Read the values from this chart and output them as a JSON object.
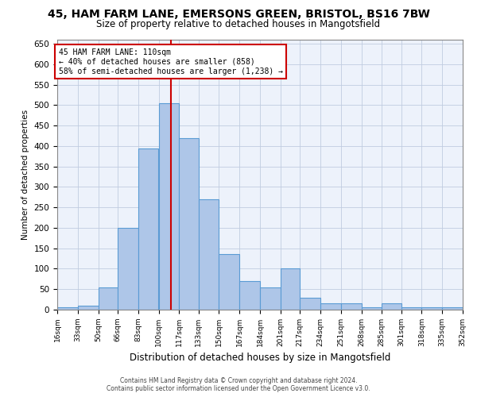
{
  "title1": "45, HAM FARM LANE, EMERSONS GREEN, BRISTOL, BS16 7BW",
  "title2": "Size of property relative to detached houses in Mangotsfield",
  "xlabel": "Distribution of detached houses by size in Mangotsfield",
  "ylabel": "Number of detached properties",
  "footer1": "Contains HM Land Registry data © Crown copyright and database right 2024.",
  "footer2": "Contains public sector information licensed under the Open Government Licence v3.0.",
  "annotation_line1": "45 HAM FARM LANE: 110sqm",
  "annotation_line2": "← 40% of detached houses are smaller (858)",
  "annotation_line3": "58% of semi-detached houses are larger (1,238) →",
  "property_size": 110,
  "bin_labels": [
    "16sqm",
    "33sqm",
    "50sqm",
    "66sqm",
    "83sqm",
    "100sqm",
    "117sqm",
    "133sqm",
    "150sqm",
    "167sqm",
    "184sqm",
    "201sqm",
    "217sqm",
    "234sqm",
    "251sqm",
    "268sqm",
    "285sqm",
    "301sqm",
    "318sqm",
    "335sqm",
    "352sqm"
  ],
  "bin_edges": [
    16,
    33,
    50,
    66,
    83,
    100,
    117,
    133,
    150,
    167,
    184,
    201,
    217,
    234,
    251,
    268,
    285,
    301,
    318,
    335,
    352
  ],
  "bar_heights": [
    5,
    10,
    55,
    200,
    395,
    505,
    420,
    270,
    135,
    70,
    55,
    100,
    30,
    15,
    15,
    5,
    15,
    5,
    5,
    5
  ],
  "bar_color": "#aec6e8",
  "bar_edge_color": "#5a9bd4",
  "vline_x": 110,
  "vline_color": "#cc0000",
  "ylim": [
    0,
    660
  ],
  "yticks": [
    0,
    50,
    100,
    150,
    200,
    250,
    300,
    350,
    400,
    450,
    500,
    550,
    600,
    650
  ],
  "bg_color": "#edf2fb",
  "grid_color": "#c0cce0",
  "annotation_box_color": "#cc0000",
  "title_fontsize": 10,
  "subtitle_fontsize": 9
}
